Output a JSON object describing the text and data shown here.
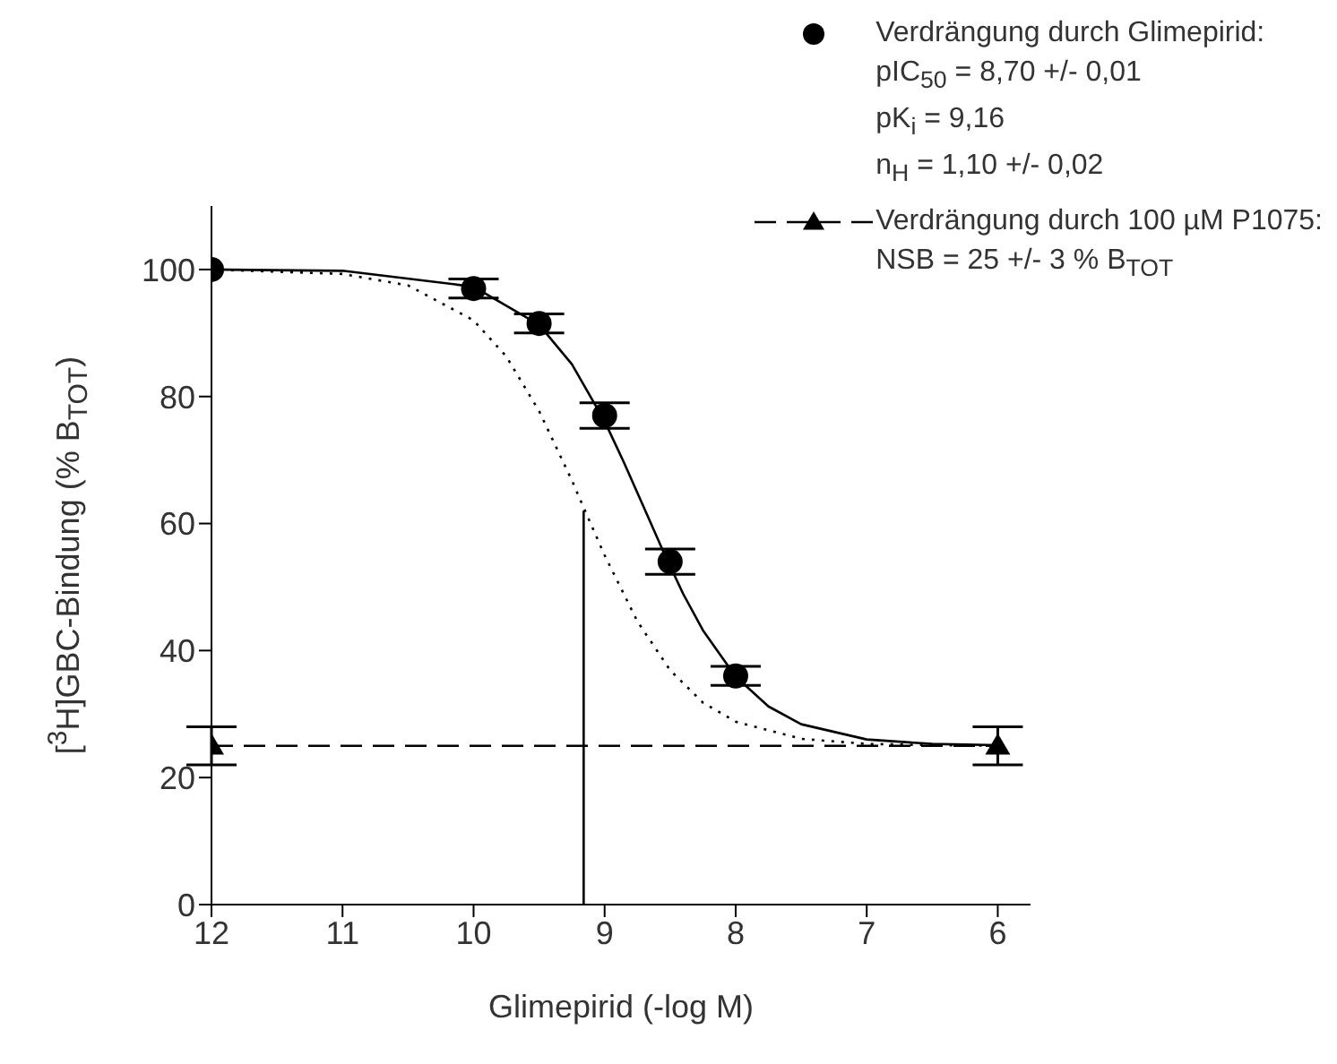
{
  "chart_data": {
    "type": "scatter",
    "xlabel": "Glimepirid (-log M)",
    "ylabel": "[$^{3}$H]GBC-Bindung (% B$_{TOT}$)",
    "xlim": [
      12,
      5.75
    ],
    "xticks": [
      12,
      11,
      10,
      9,
      8,
      7,
      6
    ],
    "ylim": [
      0,
      110
    ],
    "yticks": [
      0,
      20,
      40,
      60,
      80,
      100
    ],
    "grid": false,
    "legend": "top right",
    "series": [
      {
        "name": "Verdrängung durch Glimepirid:\npIC$_{50}$ = 8,70 +/- 0,01\npK$_{i}$ = 9,16\nn$_{H}$ = 1,10 +/- 0,02",
        "marker": "circle",
        "color": "#000000",
        "x": [
          12,
          10,
          9.5,
          9,
          8.5,
          8
        ],
        "values": [
          100,
          97,
          91.5,
          77,
          54,
          36
        ],
        "errors": [
          null,
          1.5,
          1.5,
          2,
          2,
          1.5
        ]
      },
      {
        "type": "line",
        "marker": "none",
        "line_style": "solid",
        "color": "#000000",
        "x": [
          12,
          11,
          10,
          9.5,
          9.25,
          9,
          8.85,
          8.7,
          8.55,
          8.4,
          8.25,
          8,
          7.75,
          7.5,
          7,
          6.5,
          6
        ],
        "values": [
          100,
          99.8,
          97.3,
          91.3,
          85.1,
          76.1,
          69.5,
          62.5,
          55.5,
          48.9,
          43.2,
          35.9,
          31.2,
          28.4,
          26,
          25.3,
          25.1
        ]
      },
      {
        "type": "line",
        "marker": "none",
        "line_style": "dotted",
        "color": "#000000",
        "x": [
          12,
          11,
          10.5,
          10,
          9.75,
          9.5,
          9.25,
          9.16,
          9,
          8.75,
          8.5,
          8.25,
          8,
          7.5,
          7,
          6.5,
          6
        ],
        "values": [
          100,
          99.3,
          97.5,
          92,
          86.3,
          77.7,
          66.8,
          62.5,
          55,
          44.6,
          36.9,
          31.8,
          28.8,
          26.1,
          25.3,
          25.1,
          25
        ]
      },
      {
        "type": "line",
        "marker": "none",
        "line_style": "solid",
        "color": "#000000",
        "x": [
          9.16,
          9.16
        ],
        "values": [
          0,
          62
        ]
      },
      {
        "name": "Verdrängung durch 100 µM P1075:\nNSB = 25 +/- 3 % B$_{TOT}$",
        "type": "line",
        "marker": "triangle",
        "line_style": "dashed",
        "color": "#000000",
        "x": [
          12,
          6
        ],
        "values": [
          25,
          25
        ],
        "errors": [
          3,
          3
        ]
      }
    ]
  }
}
